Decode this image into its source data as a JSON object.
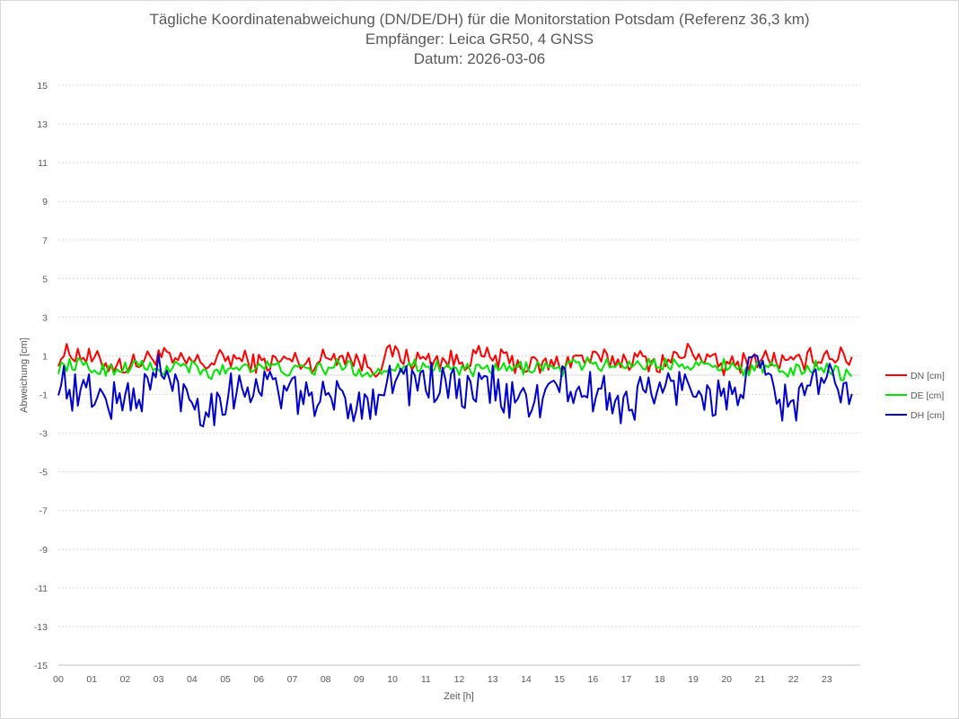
{
  "chart_data": {
    "type": "line",
    "title": "Tägliche Koordinatenabweichung (DN/DE/DH) für die Monitorstation Potsdam (Referenz 36,3 km)",
    "subtitle": "Empfänger: Leica GR50, 4 GNSS",
    "date_line": "Datum: 2026-03-06",
    "xlabel": "Zeit [h]",
    "ylabel": "Abweichung [cm]",
    "x_ticks": [
      "00",
      "01",
      "02",
      "03",
      "04",
      "05",
      "06",
      "07",
      "08",
      "09",
      "10",
      "11",
      "12",
      "13",
      "14",
      "15",
      "16",
      "17",
      "18",
      "19",
      "20",
      "21",
      "22",
      "23"
    ],
    "xlim": [
      0,
      24
    ],
    "ylim": [
      -15,
      15
    ],
    "y_ticks": [
      "15",
      "13",
      "11",
      "9",
      "7",
      "5",
      "3",
      "1",
      "-1",
      "-3",
      "-5",
      "-7",
      "-9",
      "-11",
      "-13",
      "-15"
    ],
    "grid": "horizontal dashed",
    "legend_position": "right",
    "x_hours": [
      0,
      0.5,
      1,
      1.5,
      2,
      2.5,
      3,
      3.5,
      4,
      4.5,
      5,
      5.5,
      6,
      6.5,
      7,
      7.5,
      8,
      8.5,
      9,
      9.5,
      10,
      10.5,
      11,
      11.5,
      12,
      12.5,
      13,
      13.5,
      14,
      14.5,
      15,
      15.5,
      16,
      16.5,
      17,
      17.5,
      18,
      18.5,
      19,
      19.5,
      20,
      20.5,
      21,
      21.5,
      22,
      22.5,
      23,
      23.5
    ],
    "series": [
      {
        "name": "DN [cm]",
        "color": "#ff0000",
        "values": [
          1.0,
          1.2,
          0.8,
          0.6,
          0.5,
          0.7,
          1.1,
          0.6,
          0.7,
          0.6,
          0.9,
          0.8,
          0.6,
          0.7,
          0.8,
          0.6,
          0.9,
          1.1,
          0.7,
          0.4,
          1.2,
          0.8,
          0.8,
          0.8,
          0.7,
          1.0,
          0.9,
          0.7,
          0.5,
          0.5,
          0.6,
          0.9,
          0.8,
          0.8,
          0.8,
          0.8,
          0.6,
          0.9,
          1.3,
          0.7,
          0.4,
          0.7,
          0.9,
          0.8,
          0.5,
          0.9,
          1.1,
          0.9
        ]
      },
      {
        "name": "DE [cm]",
        "color": "#00e600",
        "values": [
          0.4,
          0.6,
          0.3,
          0.3,
          0.4,
          0.6,
          0.1,
          0.5,
          0.4,
          0.0,
          0.3,
          0.5,
          0.5,
          0.4,
          0.2,
          0.3,
          0.3,
          0.6,
          0.2,
          0.1,
          0.5,
          0.5,
          0.5,
          0.4,
          0.3,
          0.2,
          0.3,
          0.3,
          0.4,
          0.5,
          0.2,
          0.6,
          0.6,
          0.5,
          0.6,
          0.6,
          0.5,
          0.7,
          0.6,
          0.4,
          0.6,
          0.3,
          0.4,
          0.3,
          0.2,
          0.4,
          0.5,
          0.0
        ]
      },
      {
        "name": "DH [cm]",
        "color": "#0000cc",
        "values": [
          0.0,
          -1.0,
          -0.8,
          -1.4,
          -1.2,
          -1.0,
          0.3,
          -0.7,
          -1.2,
          -1.8,
          -1.0,
          -0.6,
          -0.5,
          -0.6,
          -1.2,
          -0.9,
          -1.5,
          -1.1,
          -1.6,
          -1.0,
          0.0,
          -0.5,
          -0.3,
          -0.6,
          -0.8,
          -1.0,
          -0.5,
          -1.4,
          -1.2,
          -1.3,
          -0.4,
          -0.9,
          -0.9,
          -1.1,
          -1.6,
          -0.9,
          -0.8,
          -0.6,
          -0.4,
          -1.2,
          -1.2,
          -0.5,
          0.5,
          -1.2,
          -1.6,
          -0.5,
          -0.4,
          -0.5
        ]
      }
    ]
  }
}
